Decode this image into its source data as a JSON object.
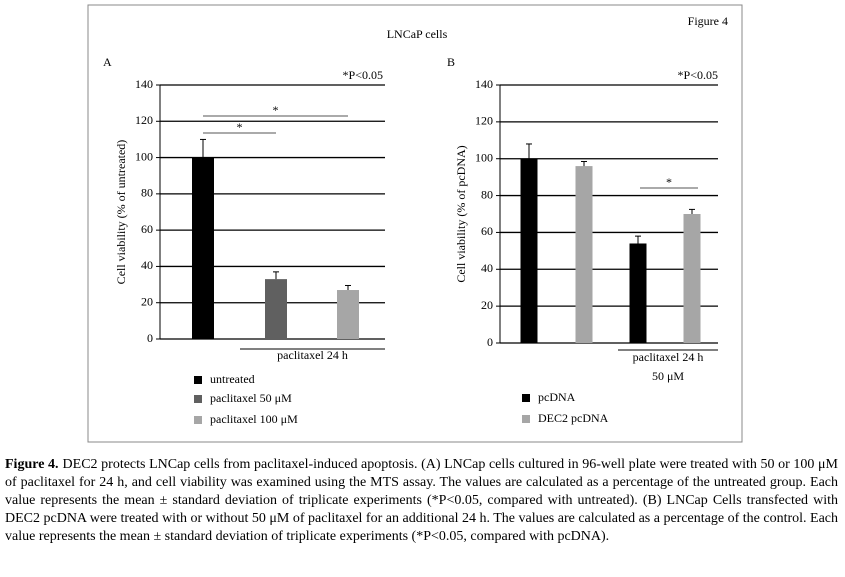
{
  "figure_label": "Figure 4",
  "title": "LNCaP cells",
  "chart_data": [
    {
      "type": "bar",
      "panel": "A",
      "note": "*P<0.05",
      "ylabel": "Cell viability (% of untreated)",
      "ylim": [
        0,
        140
      ],
      "yticks": [
        0,
        20,
        40,
        60,
        80,
        100,
        120,
        140
      ],
      "grid": true,
      "categories": [
        "untreated",
        "paclitaxel 50 μM",
        "paclitaxel 100 μM"
      ],
      "values": [
        100,
        33,
        27
      ],
      "errors": [
        10,
        4,
        2.5
      ],
      "colors": [
        "#000000",
        "#606060",
        "#a6a6a6"
      ],
      "group_label": "paclitaxel 24 h",
      "significance": [
        {
          "between": [
            0,
            1
          ],
          "label": "*"
        },
        {
          "between": [
            0,
            2
          ],
          "label": "*"
        }
      ]
    },
    {
      "type": "grouped_bar",
      "panel": "B",
      "note": "*P<0.05",
      "ylabel": "Cell viability (% of pcDNA)",
      "ylim": [
        0,
        140
      ],
      "yticks": [
        0,
        20,
        40,
        60,
        80,
        100,
        120,
        140
      ],
      "grid": true,
      "categories": [
        null,
        "paclitaxel 24 h\n50 μM"
      ],
      "series": [
        {
          "name": "pcDNA",
          "color": "#000000",
          "values": [
            100,
            54
          ],
          "errors": [
            8,
            4
          ]
        },
        {
          "name": "DEC2 pcDNA",
          "color": "#a6a6a6",
          "values": [
            96,
            70
          ],
          "errors": [
            2.5,
            2.5
          ]
        }
      ],
      "significance": [
        {
          "category": 1,
          "label": "*"
        }
      ]
    }
  ],
  "caption": {
    "label": "Figure 4.",
    "text": "DEC2 protects LNCap cells from paclitaxel-induced apoptosis. (A) LNCap cells cultured in 96-well plate were treated with 50 or 100 μM of paclitaxel for 24 h, and cell viability was examined using the MTS assay. The values are calculated as a percentage of the untreated group. Each value represents the mean ± standard deviation of triplicate experiments (*P<0.05, compared with untreated). (B) LNCap Cells transfected with DEC2 pcDNA were treated with or without 50 μM of paclitaxel for an additional 24 h. The values are calculated as a percentage of the control. Each value represents the mean ± standard deviation of triplicate experiments (*P<0.05, compared with pcDNA)."
  }
}
